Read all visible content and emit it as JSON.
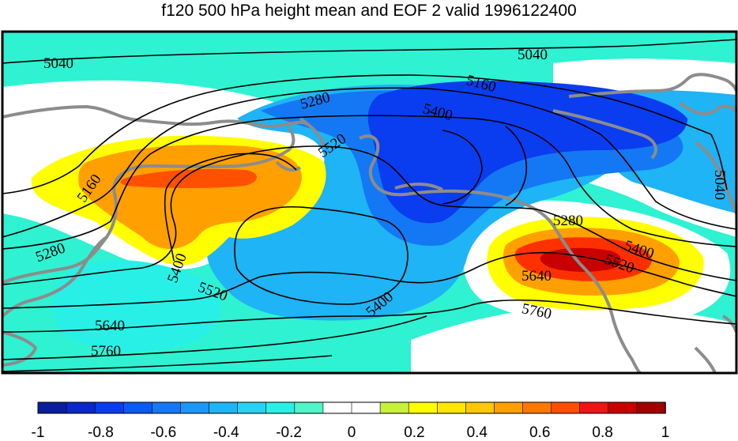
{
  "title": "f120 500 hPa height mean and EOF 2 valid 1996122400",
  "colorbar": {
    "colors": [
      "#0a1e9c",
      "#0a28c8",
      "#0a3cf0",
      "#0a5af5",
      "#1478f5",
      "#1e96f5",
      "#1eb4f5",
      "#28d2f5",
      "#28f0e6",
      "#50f5c8",
      "#ffffff",
      "#ffffff",
      "#c8f03c",
      "#ffff00",
      "#ffe600",
      "#ffc800",
      "#ffa000",
      "#ff7800",
      "#ff5000",
      "#f01414",
      "#c80000",
      "#a00000"
    ],
    "tick_labels": [
      "-1",
      "-0.8",
      "-0.6",
      "-0.4",
      "-0.2",
      "0",
      "0.2",
      "0.4",
      "0.6",
      "0.8",
      "1"
    ]
  },
  "contour_labels": [
    "5040",
    "5040",
    "5160",
    "5280",
    "5400",
    "5520",
    "5160",
    "5280",
    "5400",
    "5520",
    "5640",
    "5760",
    "5040",
    "5280",
    "5400",
    "5520",
    "5640",
    "5760",
    "5400"
  ],
  "colors": {
    "coast": "#8c8c8c",
    "contour": "#000000",
    "frame": "#000000"
  }
}
